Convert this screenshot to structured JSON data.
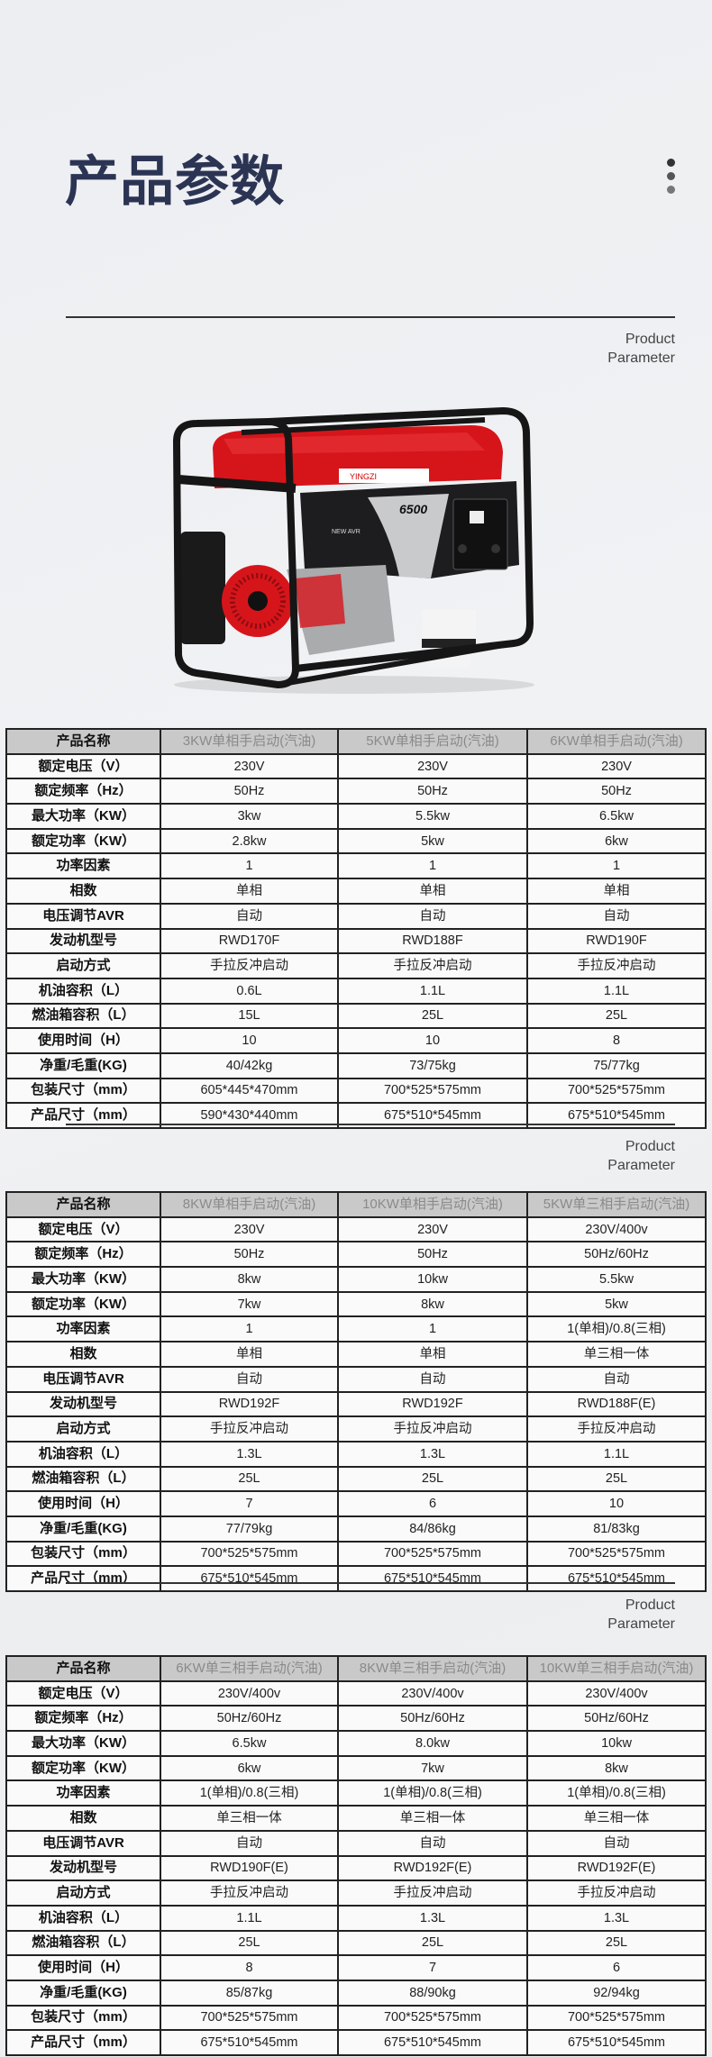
{
  "page_title": "产品参数",
  "section_label": {
    "line1": "Product",
    "line2": "Parameter"
  },
  "menu_icon": "vertical-dots-icon",
  "colors": {
    "title": "#2c3454",
    "header_bg": "#c9c9c9",
    "header_text": "#8a8a8a",
    "border": "#222222",
    "generator_red": "#d6151b"
  },
  "product_image": {
    "brand_logo": "YINGZI",
    "model_badge": "6500",
    "avr_badge": "NEW AVR"
  },
  "tables": [
    {
      "header_label": "产品名称",
      "products": [
        "3KW单相手启动(汽油)",
        "5KW单相手启动(汽油)",
        "6KW单相手启动(汽油)"
      ],
      "rows": [
        {
          "label": "额定电压（V）",
          "values": [
            "230V",
            "230V",
            "230V"
          ]
        },
        {
          "label": "额定频率（Hz）",
          "values": [
            "50Hz",
            "50Hz",
            "50Hz"
          ]
        },
        {
          "label": "最大功率（KW）",
          "values": [
            "3kw",
            "5.5kw",
            "6.5kw"
          ]
        },
        {
          "label": "额定功率（KW）",
          "values": [
            "2.8kw",
            "5kw",
            "6kw"
          ]
        },
        {
          "label": "功率因素",
          "values": [
            "1",
            "1",
            "1"
          ]
        },
        {
          "label": "相数",
          "values": [
            "单相",
            "单相",
            "单相"
          ]
        },
        {
          "label": "电压调节AVR",
          "values": [
            "自动",
            "自动",
            "自动"
          ]
        },
        {
          "label": "发动机型号",
          "values": [
            "RWD170F",
            "RWD188F",
            "RWD190F"
          ]
        },
        {
          "label": "启动方式",
          "values": [
            "手拉反冲启动",
            "手拉反冲启动",
            "手拉反冲启动"
          ]
        },
        {
          "label": "机油容积（L）",
          "values": [
            "0.6L",
            "1.1L",
            "1.1L"
          ]
        },
        {
          "label": "燃油箱容积（L）",
          "values": [
            "15L",
            "25L",
            "25L"
          ]
        },
        {
          "label": "使用时间（H）",
          "values": [
            "10",
            "10",
            "8"
          ]
        },
        {
          "label": "净重/毛重(KG)",
          "values": [
            "40/42kg",
            "73/75kg",
            "75/77kg"
          ]
        },
        {
          "label": "包装尺寸（mm）",
          "values": [
            "605*445*470mm",
            "700*525*575mm",
            "700*525*575mm"
          ]
        },
        {
          "label": "产品尺寸（mm）",
          "values": [
            "590*430*440mm",
            "675*510*545mm",
            "675*510*545mm"
          ]
        }
      ]
    },
    {
      "header_label": "产品名称",
      "products": [
        "8KW单相手启动(汽油)",
        "10KW单相手启动(汽油)",
        "5KW单三相手启动(汽油)"
      ],
      "rows": [
        {
          "label": "额定电压（V）",
          "values": [
            "230V",
            "230V",
            "230V/400v"
          ]
        },
        {
          "label": "额定频率（Hz）",
          "values": [
            "50Hz",
            "50Hz",
            "50Hz/60Hz"
          ]
        },
        {
          "label": "最大功率（KW）",
          "values": [
            "8kw",
            "10kw",
            "5.5kw"
          ]
        },
        {
          "label": "额定功率（KW）",
          "values": [
            "7kw",
            "8kw",
            "5kw"
          ]
        },
        {
          "label": "功率因素",
          "values": [
            "1",
            "1",
            "1(单相)/0.8(三相)"
          ]
        },
        {
          "label": "相数",
          "values": [
            "单相",
            "单相",
            "单三相一体"
          ]
        },
        {
          "label": "电压调节AVR",
          "values": [
            "自动",
            "自动",
            "自动"
          ]
        },
        {
          "label": "发动机型号",
          "values": [
            "RWD192F",
            "RWD192F",
            "RWD188F(E)"
          ]
        },
        {
          "label": "启动方式",
          "values": [
            "手拉反冲启动",
            "手拉反冲启动",
            "手拉反冲启动"
          ]
        },
        {
          "label": "机油容积（L）",
          "values": [
            "1.3L",
            "1.3L",
            "1.1L"
          ]
        },
        {
          "label": "燃油箱容积（L）",
          "values": [
            "25L",
            "25L",
            "25L"
          ]
        },
        {
          "label": "使用时间（H）",
          "values": [
            "7",
            "6",
            "10"
          ]
        },
        {
          "label": "净重/毛重(KG)",
          "values": [
            "77/79kg",
            "84/86kg",
            "81/83kg"
          ]
        },
        {
          "label": "包装尺寸（mm）",
          "values": [
            "700*525*575mm",
            "700*525*575mm",
            "700*525*575mm"
          ]
        },
        {
          "label": "产品尺寸（mm）",
          "values": [
            "675*510*545mm",
            "675*510*545mm",
            "675*510*545mm"
          ]
        }
      ]
    },
    {
      "header_label": "产品名称",
      "products": [
        "6KW单三相手启动(汽油)",
        "8KW单三相手启动(汽油)",
        "10KW单三相手启动(汽油)"
      ],
      "rows": [
        {
          "label": "额定电压（V）",
          "values": [
            "230V/400v",
            "230V/400v",
            "230V/400v"
          ]
        },
        {
          "label": "额定频率（Hz）",
          "values": [
            "50Hz/60Hz",
            "50Hz/60Hz",
            "50Hz/60Hz"
          ]
        },
        {
          "label": "最大功率（KW）",
          "values": [
            "6.5kw",
            "8.0kw",
            "10kw"
          ]
        },
        {
          "label": "额定功率（KW）",
          "values": [
            "6kw",
            "7kw",
            "8kw"
          ]
        },
        {
          "label": "功率因素",
          "values": [
            "1(单相)/0.8(三相)",
            "1(单相)/0.8(三相)",
            "1(单相)/0.8(三相)"
          ]
        },
        {
          "label": "相数",
          "values": [
            "单三相一体",
            "单三相一体",
            "单三相一体"
          ]
        },
        {
          "label": "电压调节AVR",
          "values": [
            "自动",
            "自动",
            "自动"
          ]
        },
        {
          "label": "发动机型号",
          "values": [
            "RWD190F(E)",
            "RWD192F(E)",
            "RWD192F(E)"
          ]
        },
        {
          "label": "启动方式",
          "values": [
            "手拉反冲启动",
            "手拉反冲启动",
            "手拉反冲启动"
          ]
        },
        {
          "label": "机油容积（L）",
          "values": [
            "1.1L",
            "1.3L",
            "1.3L"
          ]
        },
        {
          "label": "燃油箱容积（L）",
          "values": [
            "25L",
            "25L",
            "25L"
          ]
        },
        {
          "label": "使用时间（H）",
          "values": [
            "8",
            "7",
            "6"
          ]
        },
        {
          "label": "净重/毛重(KG)",
          "values": [
            "85/87kg",
            "88/90kg",
            "92/94kg"
          ]
        },
        {
          "label": "包装尺寸（mm）",
          "values": [
            "700*525*575mm",
            "700*525*575mm",
            "700*525*575mm"
          ]
        },
        {
          "label": "产品尺寸（mm）",
          "values": [
            "675*510*545mm",
            "675*510*545mm",
            "675*510*545mm"
          ]
        }
      ]
    }
  ]
}
